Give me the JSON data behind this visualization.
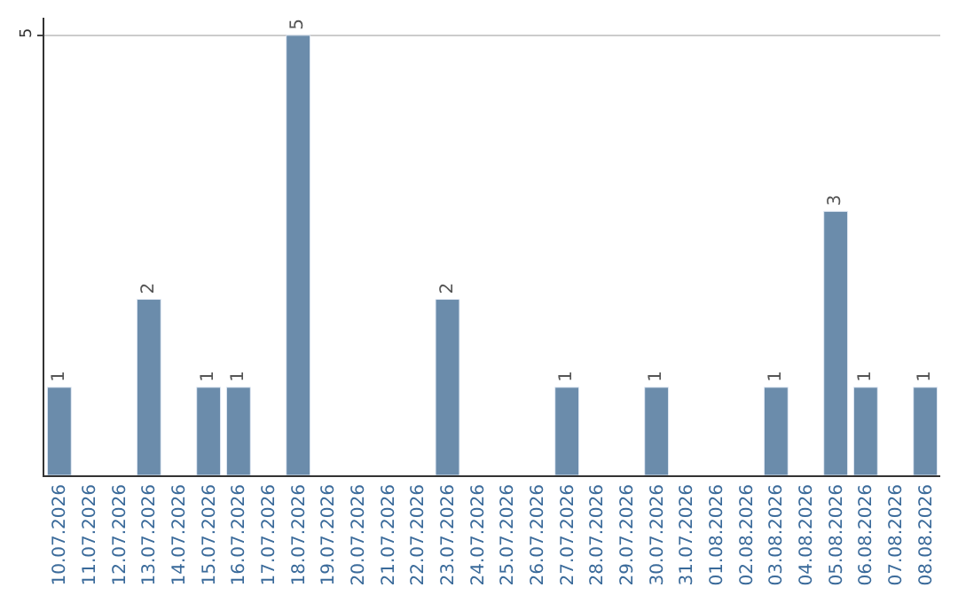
{
  "chart_data": {
    "type": "bar",
    "categories": [
      "10.07.2026",
      "11.07.2026",
      "12.07.2026",
      "13.07.2026",
      "14.07.2026",
      "15.07.2026",
      "16.07.2026",
      "17.07.2026",
      "18.07.2026",
      "19.07.2026",
      "20.07.2026",
      "21.07.2026",
      "22.07.2026",
      "23.07.2026",
      "24.07.2026",
      "25.07.2026",
      "26.07.2026",
      "27.07.2026",
      "28.07.2026",
      "29.07.2026",
      "30.07.2026",
      "31.07.2026",
      "01.08.2026",
      "02.08.2026",
      "03.08.2026",
      "04.08.2026",
      "05.08.2026",
      "06.08.2026",
      "07.08.2026",
      "08.08.2026"
    ],
    "values": [
      1,
      null,
      null,
      2,
      null,
      1,
      1,
      null,
      5,
      null,
      null,
      null,
      null,
      2,
      null,
      null,
      null,
      1,
      null,
      null,
      1,
      null,
      null,
      null,
      1,
      null,
      3,
      1,
      null,
      1
    ],
    "value_labels": [
      "1",
      null,
      null,
      "2",
      null,
      "1",
      "1",
      null,
      "5",
      null,
      null,
      null,
      null,
      "2",
      null,
      null,
      null,
      "1",
      null,
      null,
      "1",
      null,
      null,
      null,
      "1",
      null,
      "3",
      "1",
      null,
      "1"
    ],
    "color": "#6b8cab",
    "ylim": [
      0,
      5.2
    ],
    "yticks": [
      5
    ],
    "grid": "y"
  }
}
